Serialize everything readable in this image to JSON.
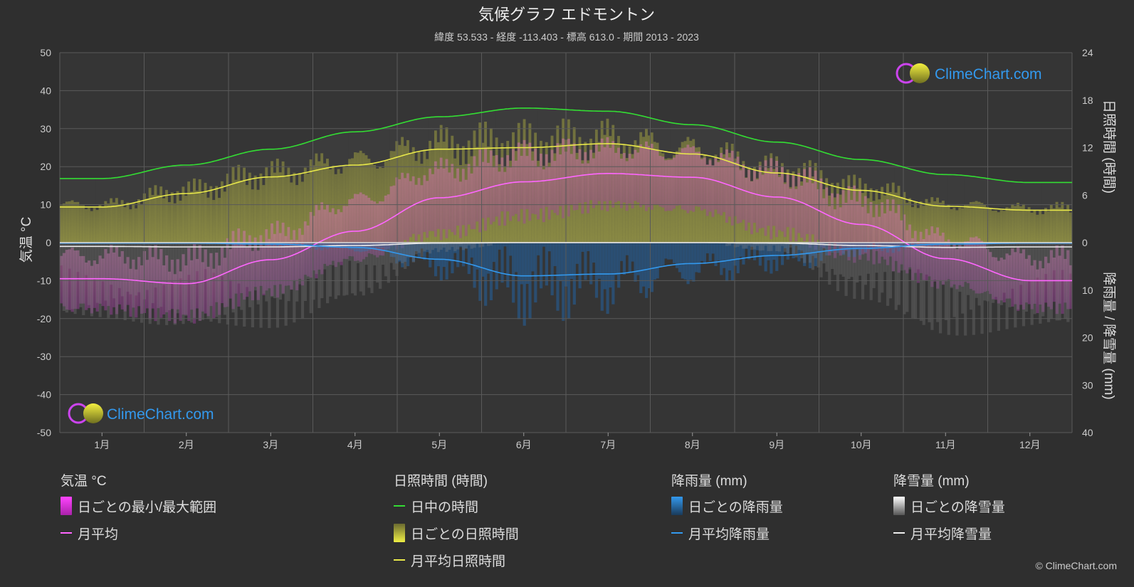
{
  "title": "気候グラフ エドモントン",
  "subtitle": "緯度 53.533 - 経度 -113.403 - 標高 613.0 - 期間 2013 - 2023",
  "logo_text": "ClimeChart.com",
  "copyright": "© ClimeChart.com",
  "colors": {
    "background": "#2f2f2f",
    "daylight": "#33dd33",
    "sunshine_avg": "#e8e84a",
    "sunshine_daily": "#a8a83a",
    "temp_avg": "#ff66ff",
    "temp_range": "#dd44dd",
    "rain_avg": "#3399ee",
    "rain_daily": "#2266aa",
    "snow_avg": "#eeeeee",
    "snow_daily": "#888888",
    "logo_text": "#3399ee"
  },
  "chart_data": {
    "type": "line",
    "months": [
      "1月",
      "2月",
      "3月",
      "4月",
      "5月",
      "6月",
      "7月",
      "8月",
      "9月",
      "10月",
      "11月",
      "12月"
    ],
    "axes": {
      "left": {
        "label": "気温 °C",
        "min": -50,
        "max": 50,
        "ticks": [
          "50",
          "40",
          "30",
          "20",
          "10",
          "0",
          "-10",
          "-20",
          "-30",
          "-40",
          "-50"
        ]
      },
      "right_top": {
        "label": "日照時間 (時間)",
        "min": 0,
        "max": 24,
        "ticks": [
          "24",
          "18",
          "12",
          "6",
          "0"
        ]
      },
      "right_bottom": {
        "label": "降雨量 / 降雪量 (mm)",
        "min": 0,
        "max": 40,
        "ticks": [
          "0",
          "10",
          "20",
          "30",
          "40"
        ]
      }
    },
    "grid": true,
    "series": [
      {
        "name": "日中の時間",
        "unit": "h",
        "values": [
          8.1,
          9.8,
          11.8,
          14.0,
          15.9,
          17.0,
          16.6,
          14.9,
          12.7,
          10.5,
          8.6,
          7.6
        ]
      },
      {
        "name": "月平均日照時間",
        "unit": "h",
        "values": [
          4.5,
          6.2,
          8.3,
          9.8,
          11.8,
          12.0,
          12.5,
          11.2,
          8.8,
          6.6,
          4.6,
          4.1
        ]
      },
      {
        "name": "月平均",
        "unit": "°C",
        "values": [
          -9.5,
          -10.8,
          -4.5,
          3.0,
          11.8,
          16.0,
          18.2,
          17.2,
          12.0,
          4.8,
          -4.2,
          -10.0
        ]
      },
      {
        "name": "月平均降雨量",
        "unit": "mm",
        "values": [
          0.1,
          0.1,
          0.3,
          1.0,
          3.5,
          7.0,
          6.6,
          4.4,
          2.7,
          1.2,
          0.3,
          0.1
        ]
      },
      {
        "name": "月平均降雪量",
        "unit": "mm",
        "values": [
          0.8,
          0.9,
          0.9,
          0.6,
          0.1,
          0.0,
          0.0,
          0.0,
          0.1,
          0.6,
          1.0,
          0.9
        ]
      }
    ],
    "temp_daily_range": {
      "max": [
        -3.5,
        -4.5,
        2.0,
        11.0,
        19.0,
        23.0,
        24.5,
        23.5,
        18.5,
        11.0,
        1.0,
        -4.0
      ],
      "min": [
        -16.0,
        -17.5,
        -11.0,
        -3.0,
        4.0,
        9.0,
        11.5,
        10.0,
        4.5,
        -1.5,
        -9.5,
        -15.5
      ]
    }
  },
  "legend": {
    "temperature": {
      "header": "気温 °C",
      "range": "日ごとの最小/最大範囲",
      "avg": "月平均"
    },
    "sunshine": {
      "header": "日照時間 (時間)",
      "daylight": "日中の時間",
      "daily": "日ごとの日照時間",
      "avg": "月平均日照時間"
    },
    "rain": {
      "header": "降雨量 (mm)",
      "daily": "日ごとの降雨量",
      "avg": "月平均降雨量"
    },
    "snow": {
      "header": "降雪量 (mm)",
      "daily": "日ごとの降雪量",
      "avg": "月平均降雪量"
    }
  }
}
